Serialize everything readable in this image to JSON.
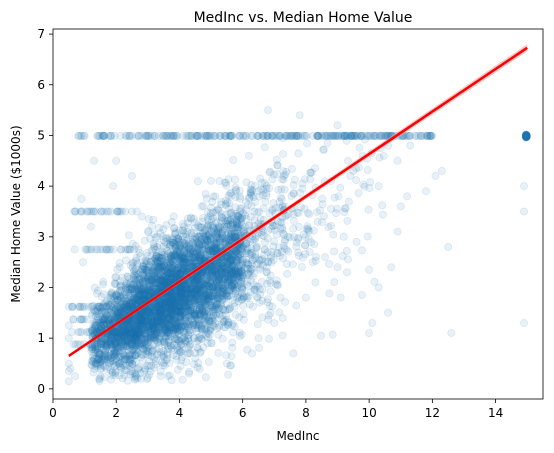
{
  "chart_data": {
    "type": "scatter",
    "title": "MedInc vs. Median Home Value",
    "xlabel": "MedInc",
    "ylabel": "Median Home Value ($1000s)",
    "xlim": [
      0,
      15.5
    ],
    "ylim": [
      -0.2,
      7.1
    ],
    "xticks": [
      0,
      2,
      4,
      6,
      8,
      10,
      12,
      14
    ],
    "yticks": [
      0,
      1,
      2,
      3,
      4,
      5,
      6,
      7
    ],
    "xtick_labels": [
      "0",
      "2",
      "4",
      "6",
      "8",
      "10",
      "12",
      "14"
    ],
    "ytick_labels": [
      "0",
      "1",
      "2",
      "3",
      "4",
      "5",
      "6",
      "7"
    ],
    "grid": false,
    "legend": "none",
    "point_color": "#1f77b4",
    "point_alpha": 0.1,
    "regression_line": {
      "color": "#ff0000",
      "band_color": "#f4a0a0",
      "x": [
        0.5,
        15.0
      ],
      "y": [
        0.65,
        6.73
      ]
    },
    "series": [
      {
        "points": [
          [
            0.5,
            0.15
          ],
          [
            0.5,
            0.35
          ],
          [
            0.5,
            0.5
          ],
          [
            0.5,
            1.0
          ],
          [
            0.5,
            1.25
          ],
          [
            0.5,
            1.62
          ],
          [
            0.55,
            0.4
          ],
          [
            0.6,
            1.12
          ],
          [
            0.6,
            1.62
          ],
          [
            0.7,
            0.25
          ],
          [
            0.7,
            3.5
          ],
          [
            0.9,
            3.75
          ],
          [
            1.0,
            4.99
          ],
          [
            1.1,
            3.5
          ],
          [
            1.2,
            3.2
          ],
          [
            1.3,
            4.5
          ],
          [
            1.5,
            4.99
          ],
          [
            1.7,
            3.5
          ],
          [
            1.9,
            4.0
          ],
          [
            2.0,
            4.5
          ],
          [
            2.3,
            4.99
          ],
          [
            2.5,
            4.2
          ],
          [
            0.8,
            4.99
          ],
          [
            0.95,
            2.5
          ],
          [
            2.6,
            0.2
          ],
          [
            3.0,
            0.22
          ],
          [
            3.4,
            0.25
          ],
          [
            4.1,
            0.18
          ],
          [
            4.3,
            0.3
          ],
          [
            5.5,
            0.5
          ],
          [
            6.3,
            0.7
          ],
          [
            7.6,
            0.7
          ],
          [
            5.0,
            0.9
          ],
          [
            6.5,
            1.0
          ],
          [
            7.0,
            1.3
          ],
          [
            7.2,
            1.8
          ],
          [
            8.0,
            1.8
          ],
          [
            8.3,
            2.1
          ],
          [
            8.6,
            2.6
          ],
          [
            9.0,
            2.4
          ],
          [
            9.1,
            1.8
          ],
          [
            9.3,
            2.3
          ],
          [
            9.6,
            2.9
          ],
          [
            9.2,
            3.0
          ],
          [
            10.0,
            2.35
          ],
          [
            10.3,
            2.0
          ],
          [
            10.6,
            1.5
          ],
          [
            10.7,
            2.4
          ],
          [
            10.0,
            1.1
          ],
          [
            10.1,
            1.3
          ],
          [
            12.6,
            1.1
          ],
          [
            12.5,
            2.8
          ],
          [
            14.9,
            1.3
          ],
          [
            14.9,
            3.5
          ],
          [
            14.9,
            4.0
          ],
          [
            10.9,
            3.1
          ],
          [
            11.0,
            3.6
          ],
          [
            10.3,
            4.0
          ],
          [
            11.2,
            3.8
          ],
          [
            11.8,
            3.9
          ],
          [
            12.3,
            4.3
          ],
          [
            12.1,
            4.2
          ],
          [
            11.3,
            4.8
          ],
          [
            9.8,
            4.6
          ],
          [
            9.5,
            4.3
          ],
          [
            8.8,
            4.1
          ],
          [
            10.9,
            4.5
          ],
          [
            10.6,
            4.8
          ],
          [
            7.8,
            5.4
          ],
          [
            6.8,
            5.5
          ],
          [
            9.0,
            5.2
          ]
        ]
      }
    ]
  }
}
